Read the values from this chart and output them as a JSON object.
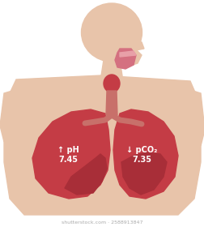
{
  "bg_color": "#ffffff",
  "body_color": "#e8c4aa",
  "lung_color": "#c43c45",
  "lung_dark": "#a82e38",
  "lung_highlight": "#d45060",
  "throat_color": "#c43c45",
  "mouth_color": "#d47080",
  "trachea_color": "#c8706a",
  "text_color": "#ffffff",
  "label_left_line1": "↑ pH",
  "label_left_line2": "7.45",
  "label_right_line1": "↓ pCO₂",
  "label_right_line2": "7.35",
  "watermark": "shutterstock.com · 2588913847"
}
